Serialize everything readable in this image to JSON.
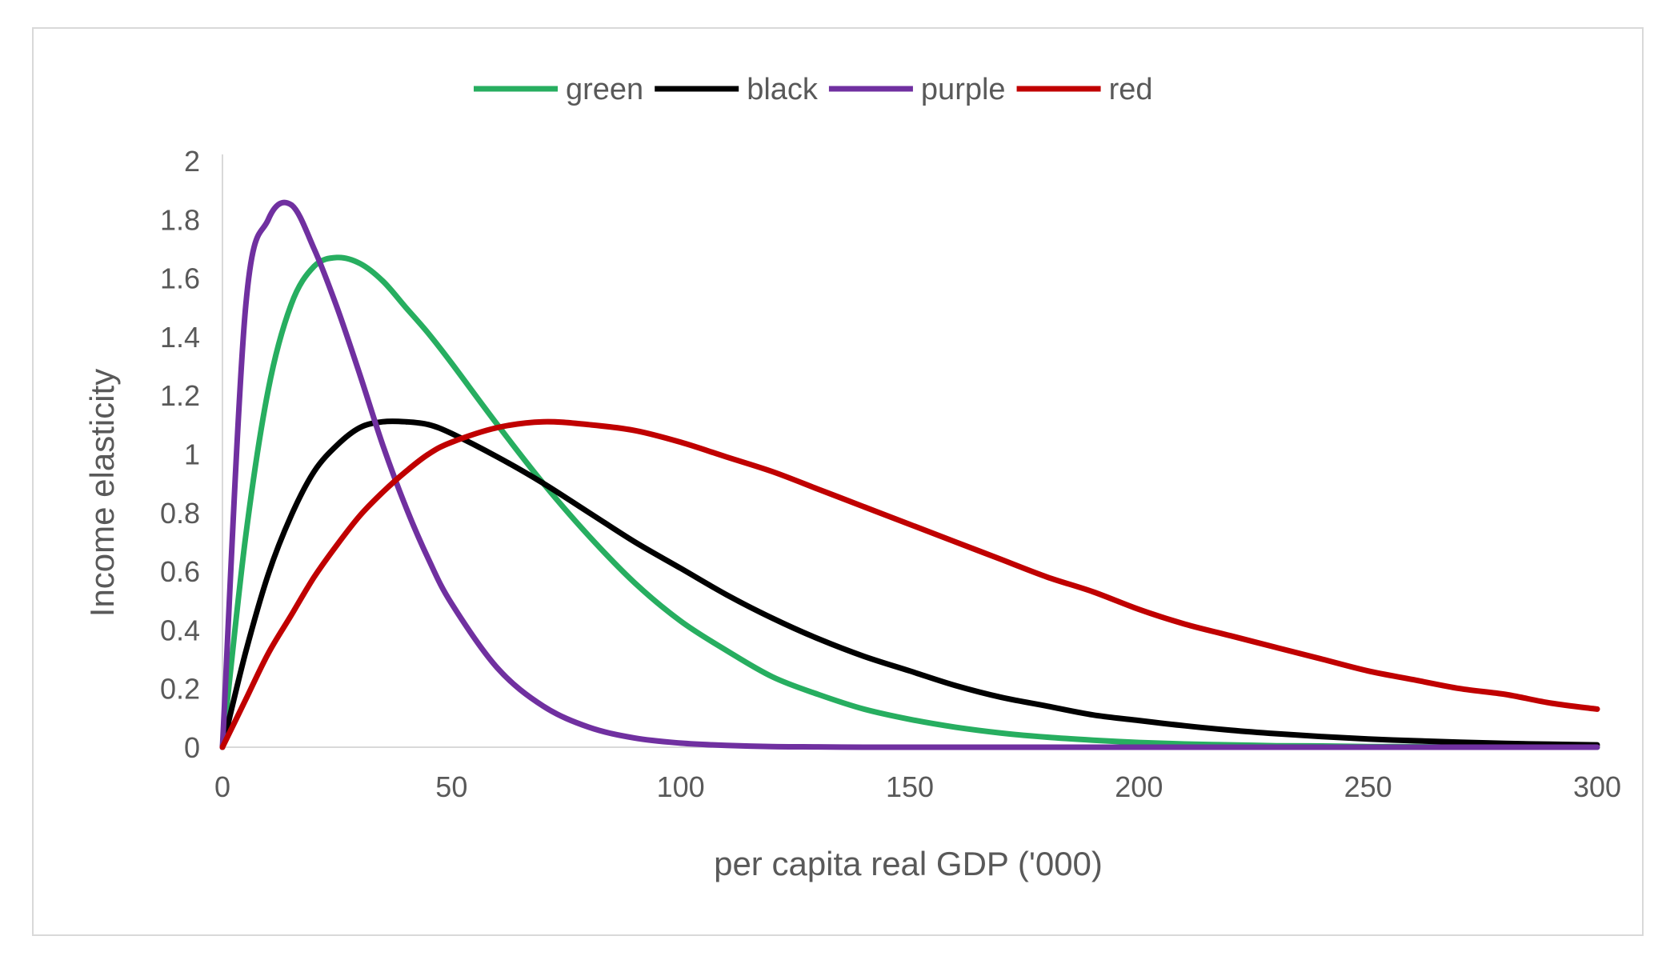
{
  "chart_data": {
    "type": "line",
    "title": "",
    "xlabel": "per capita real GDP ('000)",
    "ylabel": "Income elasticity",
    "xlim": [
      0,
      300
    ],
    "ylim": [
      0,
      2
    ],
    "x_ticks": [
      "0",
      "50",
      "100",
      "150",
      "200",
      "250",
      "300"
    ],
    "y_ticks": [
      "0",
      "0.2",
      "0.4",
      "0.6",
      "0.8",
      "1",
      "1.2",
      "1.4",
      "1.6",
      "1.8",
      "2"
    ],
    "grid": false,
    "legend_position": "top",
    "x": [
      0,
      5,
      10,
      15,
      20,
      25,
      30,
      35,
      40,
      45,
      50,
      60,
      70,
      80,
      90,
      100,
      110,
      120,
      130,
      140,
      150,
      160,
      170,
      180,
      190,
      200,
      210,
      220,
      230,
      240,
      250,
      260,
      270,
      280,
      290,
      300
    ],
    "series": [
      {
        "name": "green",
        "color": "#27ae60",
        "values": [
          0,
          0.71,
          1.22,
          1.51,
          1.64,
          1.67,
          1.65,
          1.59,
          1.5,
          1.41,
          1.31,
          1.1,
          0.9,
          0.72,
          0.56,
          0.43,
          0.33,
          0.24,
          0.18,
          0.13,
          0.095,
          0.068,
          0.048,
          0.034,
          0.024,
          0.016,
          0.011,
          0.008,
          0.005,
          0.004,
          0.002,
          0.002,
          0.001,
          0.001,
          0.0,
          0.0
        ]
      },
      {
        "name": "black",
        "color": "#000000",
        "values": [
          0,
          0.32,
          0.59,
          0.79,
          0.94,
          1.03,
          1.09,
          1.11,
          1.11,
          1.1,
          1.07,
          0.99,
          0.9,
          0.8,
          0.7,
          0.61,
          0.52,
          0.44,
          0.37,
          0.31,
          0.26,
          0.21,
          0.17,
          0.14,
          0.11,
          0.091,
          0.073,
          0.058,
          0.046,
          0.036,
          0.028,
          0.022,
          0.017,
          0.013,
          0.01,
          0.008
        ]
      },
      {
        "name": "purple",
        "color": "#7030a0",
        "values": [
          0,
          1.49,
          1.8,
          1.85,
          1.7,
          1.5,
          1.27,
          1.03,
          0.82,
          0.64,
          0.49,
          0.27,
          0.14,
          0.068,
          0.031,
          0.014,
          0.006,
          0.002,
          0.001,
          0.0,
          0.0,
          0.0,
          0.0,
          0.0,
          0.0,
          0.0,
          0.0,
          0.0,
          0.0,
          0.0,
          0.0,
          0.0,
          0.0,
          0.0,
          0.0,
          0.0
        ]
      },
      {
        "name": "red",
        "color": "#c00000",
        "values": [
          0,
          0.16,
          0.32,
          0.45,
          0.58,
          0.69,
          0.79,
          0.87,
          0.94,
          1.0,
          1.04,
          1.09,
          1.11,
          1.1,
          1.08,
          1.04,
          0.99,
          0.94,
          0.88,
          0.82,
          0.76,
          0.7,
          0.64,
          0.58,
          0.53,
          0.47,
          0.42,
          0.38,
          0.34,
          0.3,
          0.26,
          0.23,
          0.2,
          0.18,
          0.15,
          0.13
        ]
      }
    ]
  }
}
